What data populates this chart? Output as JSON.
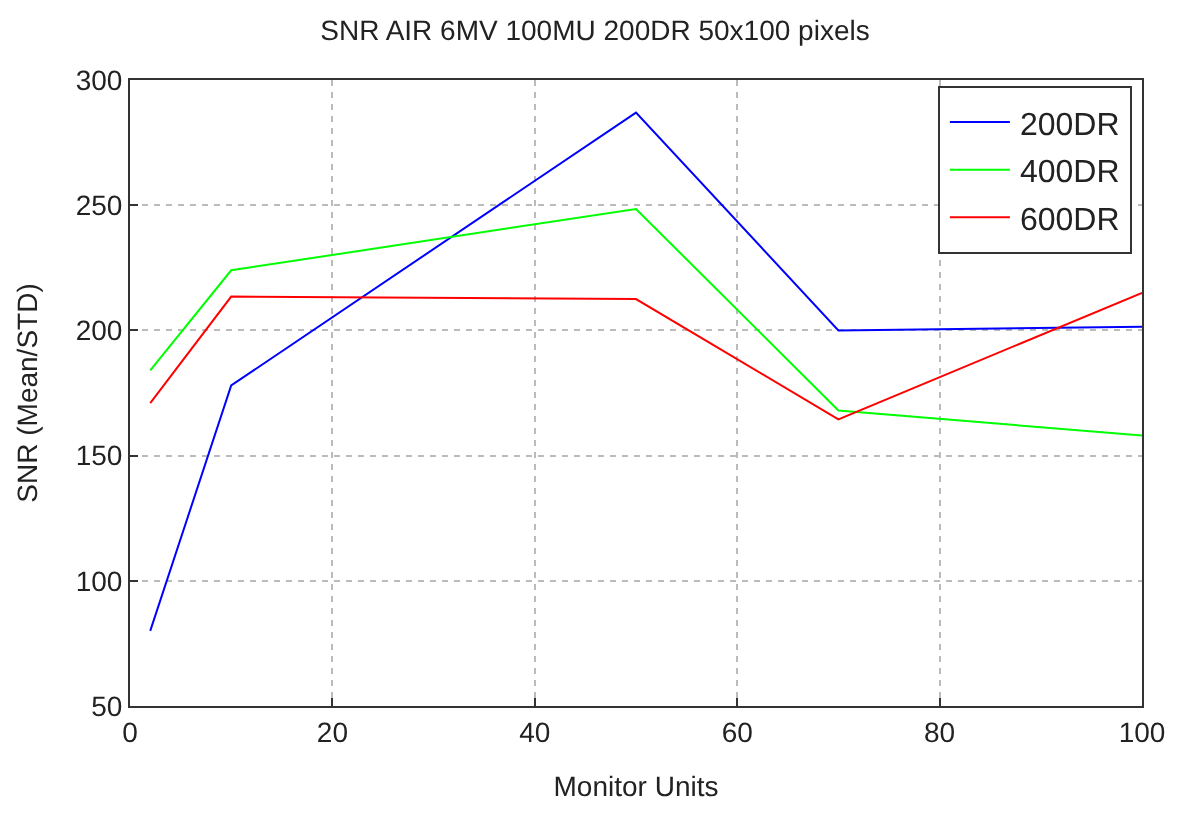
{
  "chart_data": {
    "type": "line",
    "title": "SNR AIR 6MV 100MU 200DR 50x100 pixels",
    "xlabel": "Monitor Units",
    "ylabel": "SNR (Mean/STD)",
    "x": [
      2,
      10,
      50,
      70,
      100
    ],
    "series": [
      {
        "name": "200DR",
        "color": "#0000ff",
        "values": [
          80,
          178,
          287,
          200,
          201.5
        ]
      },
      {
        "name": "400DR",
        "color": "#00ff00",
        "values": [
          184,
          224,
          248.5,
          168,
          158
        ]
      },
      {
        "name": "600DR",
        "color": "#ff0000",
        "values": [
          171,
          213.5,
          212.5,
          164.5,
          215
        ]
      }
    ],
    "xlim": [
      0,
      100
    ],
    "xticks": [
      0,
      20,
      40,
      60,
      80,
      100
    ],
    "ylim": [
      50,
      300
    ],
    "yticks": [
      50,
      100,
      150,
      200,
      250,
      300
    ],
    "grid": true,
    "legend": "top right",
    "marker": "none",
    "line_style": "solid"
  }
}
